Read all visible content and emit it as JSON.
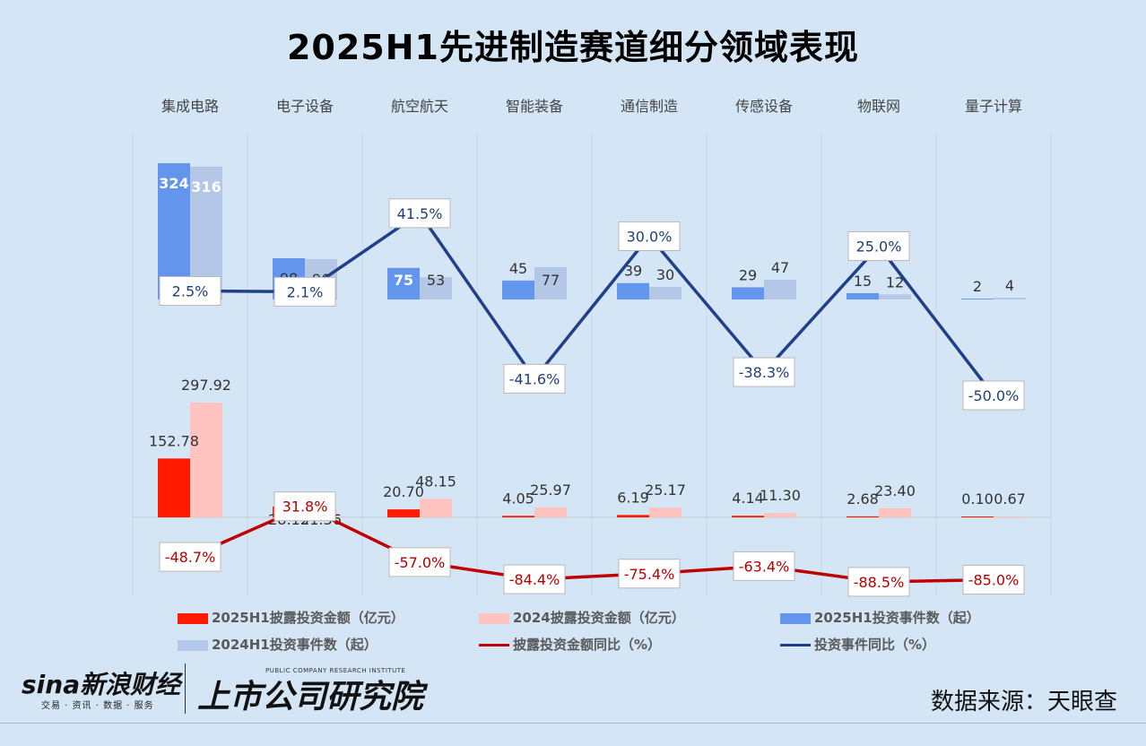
{
  "title": "2025H1先进制造赛道细分领域表现",
  "chart_data": {
    "type": "bar",
    "categories": [
      "集成电路",
      "电子设备",
      "航空航天",
      "智能装备",
      "通信制造",
      "传感设备",
      "物联网",
      "量子计算"
    ],
    "series": [
      {
        "name": "2025H1披露投资金额（亿元）",
        "type": "bar",
        "color": "#ff1a00",
        "values": [
          152.78,
          28.15,
          20.7,
          4.05,
          6.19,
          4.14,
          2.68,
          0.1
        ],
        "labels": [
          "152.78",
          "28.15",
          "20.70",
          "4.05",
          "6.19",
          "4.14",
          "2.68",
          "0.10"
        ]
      },
      {
        "name": "2024披露投资金额（亿元）",
        "type": "bar",
        "color": "#ffc4c0",
        "values": [
          297.92,
          21.36,
          48.15,
          25.97,
          25.17,
          11.3,
          23.4,
          0.67
        ],
        "labels": [
          "297.92",
          "21.36",
          "48.15",
          "25.97",
          "25.17",
          "11.30",
          "23.40",
          "0.67"
        ]
      },
      {
        "name": "2025H1投资事件数（起）",
        "type": "bar",
        "color": "#6495ed",
        "values": [
          324,
          98,
          75,
          45,
          39,
          29,
          15,
          2
        ]
      },
      {
        "name": "2024H1投资事件数（起）",
        "type": "bar",
        "color": "#b4c7e7",
        "values": [
          316,
          96,
          53,
          77,
          30,
          47,
          12,
          4
        ]
      },
      {
        "name": "披露投资金额同比（%）",
        "type": "line",
        "color": "#c00000",
        "values": [
          -48.7,
          31.8,
          -57.0,
          -84.4,
          -75.4,
          -63.4,
          -88.5,
          -85.0
        ],
        "labels": [
          "-48.7%",
          "31.8%",
          "-57.0%",
          "-84.4%",
          "-75.4%",
          "-63.4%",
          "-88.5%",
          "-85.0%"
        ]
      },
      {
        "name": "投资事件同比（%）",
        "type": "line",
        "color": "#1f3f8a",
        "values": [
          2.5,
          2.1,
          41.5,
          -41.6,
          30.0,
          -38.3,
          25.0,
          -50.0
        ],
        "labels": [
          "2.5%",
          "2.1%",
          "41.5%",
          "-41.6%",
          "30.0%",
          "-38.3%",
          "25.0%",
          "-50.0%"
        ]
      }
    ]
  },
  "logos": {
    "sina": "sina新浪财经",
    "sina_sub": "交易 · 资讯 · 数据 · 服务",
    "institute": "上市公司研究院",
    "institute_en": "PUBLIC COMPANY RESEARCH INSTITUTE"
  },
  "source": "数据来源：天眼查"
}
